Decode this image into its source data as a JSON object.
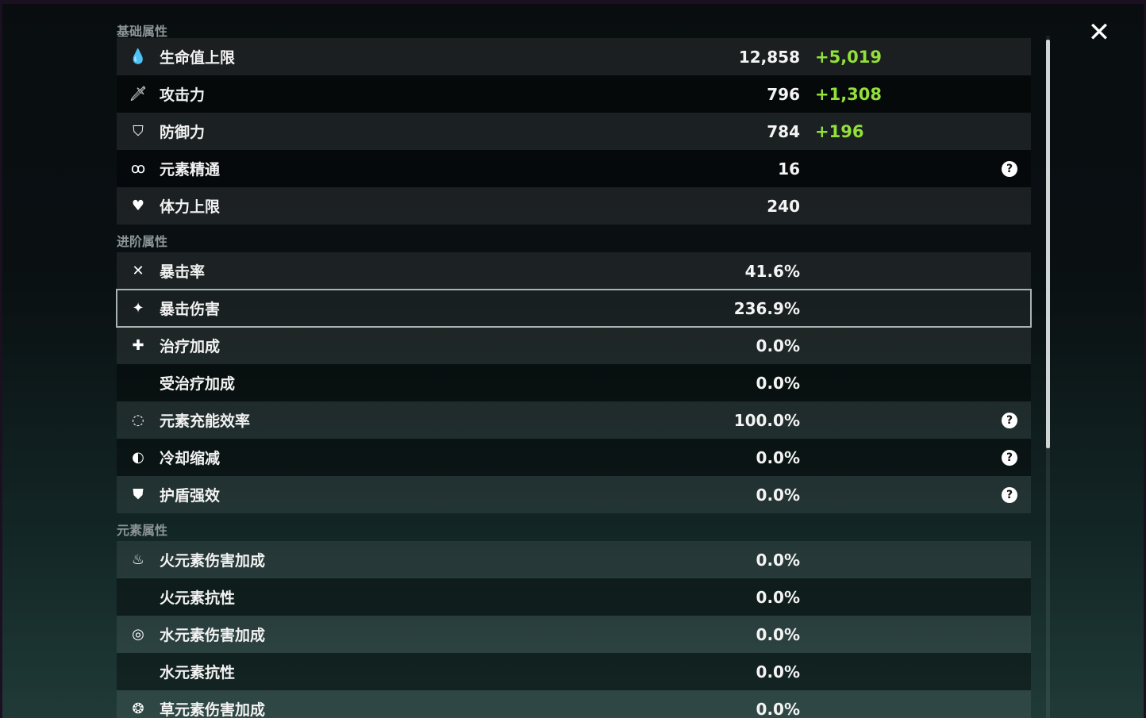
{
  "sections": [
    {
      "title": "基础属性",
      "rows": [
        {
          "icon": "hp-drop-icon",
          "glyph": "💧",
          "label": "生命值上限",
          "value": "12,858",
          "bonus": "+5,019"
        },
        {
          "icon": "sword-icon",
          "glyph": "🗡",
          "label": "攻击力",
          "value": "796",
          "bonus": "+1,308"
        },
        {
          "icon": "shield-icon",
          "glyph": "⛉",
          "label": "防御力",
          "value": "784",
          "bonus": "+196"
        },
        {
          "icon": "elemental-mastery-icon",
          "glyph": "ꝏ",
          "label": "元素精通",
          "value": "16",
          "help": "?"
        },
        {
          "icon": "stamina-icon",
          "glyph": "♥",
          "label": "体力上限",
          "value": "240"
        }
      ]
    },
    {
      "title": "进阶属性",
      "rows": [
        {
          "icon": "crit-rate-icon",
          "glyph": "✕",
          "label": "暴击率",
          "value": "41.6%"
        },
        {
          "icon": "crit-dmg-icon",
          "glyph": "✦",
          "label": "暴击伤害",
          "value": "236.9%",
          "selected": true
        },
        {
          "icon": "healing-icon",
          "glyph": "✚",
          "label": "治疗加成",
          "value": "0.0%"
        },
        {
          "icon": "",
          "glyph": "",
          "label": "受治疗加成",
          "value": "0.0%"
        },
        {
          "icon": "energy-recharge-icon",
          "glyph": "◌",
          "label": "元素充能效率",
          "value": "100.0%",
          "help": "?"
        },
        {
          "icon": "cd-reduction-icon",
          "glyph": "◐",
          "label": "冷却缩减",
          "value": "0.0%",
          "help": "?"
        },
        {
          "icon": "shield-strength-icon",
          "glyph": "⛊",
          "label": "护盾强效",
          "value": "0.0%",
          "help": "?"
        }
      ]
    },
    {
      "title": "元素属性",
      "rows": [
        {
          "icon": "pyro-icon",
          "glyph": "♨",
          "label": "火元素伤害加成",
          "value": "0.0%"
        },
        {
          "icon": "",
          "glyph": "",
          "label": "火元素抗性",
          "value": "0.0%"
        },
        {
          "icon": "hydro-icon",
          "glyph": "◎",
          "label": "水元素伤害加成",
          "value": "0.0%"
        },
        {
          "icon": "",
          "glyph": "",
          "label": "水元素抗性",
          "value": "0.0%"
        },
        {
          "icon": "dendro-icon",
          "glyph": "❂",
          "label": "草元素伤害加成",
          "value": "0.0%"
        }
      ]
    }
  ],
  "close_glyph": "✕",
  "colors": {
    "bonus": "#93e03a",
    "selected_border": "#a8b4b4"
  }
}
